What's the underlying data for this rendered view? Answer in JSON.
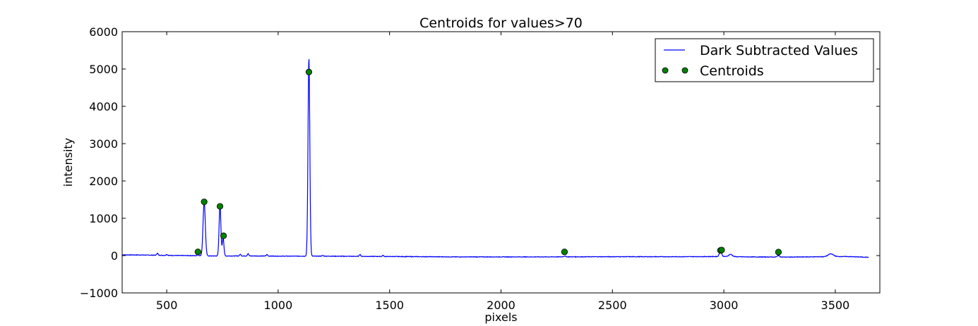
{
  "chart_data": {
    "type": "line",
    "title": "Centroids for values>70",
    "xlabel": "pixels",
    "ylabel": "intensity",
    "xlim": [
      300,
      3700
    ],
    "ylim": [
      -1000,
      6000
    ],
    "xticks": [
      500,
      1000,
      1500,
      2000,
      2500,
      3000,
      3500
    ],
    "yticks": [
      -1000,
      0,
      1000,
      2000,
      3000,
      4000,
      5000,
      6000
    ],
    "grid": false,
    "legend_position": "top-right",
    "series": [
      {
        "name": "Dark Subtracted Values",
        "kind": "line",
        "color": "#0000ff",
        "baseline": [
          [
            300,
            20
          ],
          [
            400,
            15
          ],
          [
            500,
            5
          ],
          [
            600,
            0
          ],
          [
            700,
            -10
          ],
          [
            800,
            -10
          ],
          [
            900,
            -10
          ],
          [
            1000,
            -15
          ],
          [
            1200,
            -15
          ],
          [
            1500,
            -25
          ],
          [
            1800,
            -35
          ],
          [
            2000,
            -35
          ],
          [
            2200,
            -35
          ],
          [
            2500,
            -30
          ],
          [
            2800,
            -30
          ],
          [
            3000,
            -25
          ],
          [
            3100,
            -35
          ],
          [
            3300,
            -40
          ],
          [
            3450,
            -30
          ],
          [
            3550,
            -25
          ],
          [
            3650,
            -45
          ]
        ],
        "peaks": [
          {
            "x": 458,
            "height": 55,
            "width": 3
          },
          {
            "x": 500,
            "height": 25,
            "width": 3
          },
          {
            "x": 640,
            "height": 30,
            "width": 3
          },
          {
            "x": 668,
            "height": 1450,
            "width": 5
          },
          {
            "x": 739,
            "height": 1350,
            "width": 4
          },
          {
            "x": 753,
            "height": 500,
            "width": 3.5
          },
          {
            "x": 830,
            "height": 45,
            "width": 3
          },
          {
            "x": 865,
            "height": 60,
            "width": 3
          },
          {
            "x": 950,
            "height": 40,
            "width": 3
          },
          {
            "x": 1138,
            "height": 5320,
            "width": 4
          },
          {
            "x": 1200,
            "height": 15,
            "width": 4
          },
          {
            "x": 1367,
            "height": 50,
            "width": 3
          },
          {
            "x": 1470,
            "height": 30,
            "width": 3
          },
          {
            "x": 2285,
            "height": 20,
            "width": 5
          },
          {
            "x": 2985,
            "height": 150,
            "width": 5
          },
          {
            "x": 3030,
            "height": 60,
            "width": 8
          },
          {
            "x": 3245,
            "height": 40,
            "width": 5
          },
          {
            "x": 3480,
            "height": 75,
            "width": 12
          }
        ]
      },
      {
        "name": "Centroids",
        "kind": "points",
        "color": "#008000",
        "points": [
          {
            "x": 640,
            "y": 100
          },
          {
            "x": 668,
            "y": 1440
          },
          {
            "x": 739,
            "y": 1320
          },
          {
            "x": 755,
            "y": 530
          },
          {
            "x": 1138,
            "y": 4920
          },
          {
            "x": 2285,
            "y": 100
          },
          {
            "x": 2985,
            "y": 140
          },
          {
            "x": 2990,
            "y": 150
          },
          {
            "x": 3245,
            "y": 95
          }
        ]
      }
    ]
  }
}
